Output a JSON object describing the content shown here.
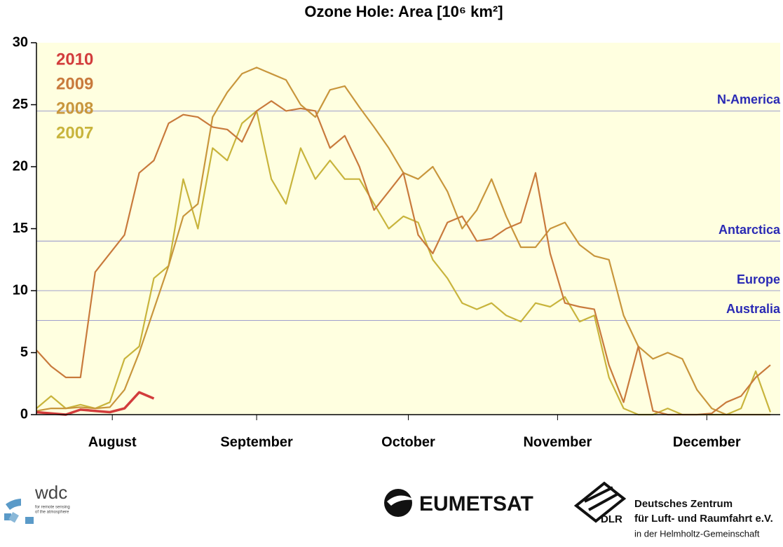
{
  "chart_data": {
    "type": "line",
    "title": "Ozone Hole: Area [10⁶ km²]",
    "x": [
      0,
      3,
      6,
      9,
      12,
      15,
      18,
      21,
      24,
      27,
      30,
      33,
      36,
      39,
      42,
      45,
      48,
      51,
      54,
      57,
      60,
      63,
      66,
      69,
      72,
      75,
      78,
      81,
      84,
      87,
      90,
      93,
      96,
      99,
      102,
      105,
      108,
      111,
      114,
      117,
      120,
      123,
      126,
      129,
      132,
      135,
      138,
      141,
      144,
      147,
      150
    ],
    "xlim": [
      0,
      152
    ],
    "xticks": [
      {
        "value": 15.5,
        "label": "August"
      },
      {
        "value": 45,
        "label": "September"
      },
      {
        "value": 76,
        "label": "October"
      },
      {
        "value": 106.5,
        "label": "November"
      },
      {
        "value": 137,
        "label": "December"
      }
    ],
    "ylim": [
      0,
      30
    ],
    "yticks": [
      0,
      5,
      10,
      15,
      20,
      25,
      30
    ],
    "background": "#ffffe0",
    "series": [
      {
        "name": "2010",
        "color": "#d23c3c",
        "values": [
          0.2,
          0.1,
          0,
          0.4,
          0.3,
          0.2,
          0.5,
          1.8,
          1.3,
          null,
          null,
          null,
          null,
          null,
          null,
          null,
          null,
          null,
          null,
          null,
          null,
          null,
          null,
          null,
          null,
          null,
          null,
          null,
          null,
          null,
          null,
          null,
          null,
          null,
          null,
          null,
          null,
          null,
          null,
          null,
          null,
          null,
          null,
          null,
          null,
          null,
          null,
          null,
          null,
          null,
          null
        ]
      },
      {
        "name": "2009",
        "color": "#c87a3c",
        "values": [
          5.2,
          3.9,
          3.0,
          3.0,
          11.5,
          13,
          14.5,
          19.5,
          20.5,
          23.5,
          24.2,
          24,
          23.2,
          23,
          22,
          24.5,
          25.3,
          24.5,
          24.7,
          24.5,
          21.5,
          22.5,
          20,
          16.5,
          18,
          19.5,
          14.5,
          13,
          15.5,
          16,
          14,
          14.2,
          15,
          15.5,
          19.5,
          13,
          9,
          8.7,
          8.5,
          4,
          1,
          5.5,
          0.3,
          0,
          0,
          0,
          0.1,
          1,
          1.5,
          3,
          4
        ]
      },
      {
        "name": "2008",
        "color": "#c8963c",
        "values": [
          0.3,
          0.5,
          0.5,
          0.6,
          0.5,
          0.6,
          2,
          5,
          8.5,
          12,
          16,
          17,
          24,
          26,
          27.5,
          28,
          27.5,
          27,
          25,
          24,
          26.2,
          26.5,
          24.8,
          23.2,
          21.5,
          19.5,
          19,
          20,
          18,
          15,
          16.5,
          19,
          16,
          13.5,
          13.5,
          15,
          15.5,
          13.7,
          12.8,
          12.5,
          8,
          5.5,
          4.5,
          5,
          4.5,
          2,
          0.5,
          0,
          0,
          0,
          0
        ]
      },
      {
        "name": "2007",
        "color": "#c8b43c",
        "values": [
          0.5,
          1.5,
          0.5,
          0.8,
          0.5,
          1,
          4.5,
          5.5,
          11,
          12,
          19,
          15,
          21.5,
          20.5,
          23.5,
          24.5,
          19,
          17,
          21.5,
          19,
          20.5,
          19,
          19,
          17,
          15,
          16,
          15.5,
          12.5,
          11,
          9,
          8.5,
          9,
          8,
          7.5,
          9,
          8.7,
          9.5,
          7.5,
          8,
          3,
          0.5,
          0,
          0,
          0.5,
          0,
          0,
          0,
          0,
          0.5,
          3.5,
          0.2
        ]
      }
    ],
    "reference_lines": [
      {
        "label": "N-America",
        "value": 24.5
      },
      {
        "label": "Antarctica",
        "value": 14
      },
      {
        "label": "Europe",
        "value": 10
      },
      {
        "label": "Australia",
        "value": 7.6
      }
    ],
    "reference_color": "#2a2ab4"
  },
  "footer": {
    "wdc": "wdc",
    "wdc_sub1": "for remote sensing",
    "wdc_sub2": "of the atmosphere",
    "eumetsat": "EUMETSAT",
    "dlr": "DLR",
    "dlr_line1": "Deutsches Zentrum",
    "dlr_line2": "für Luft- und Raumfahrt e.V.",
    "dlr_line3": "in der Helmholtz-Gemeinschaft"
  }
}
